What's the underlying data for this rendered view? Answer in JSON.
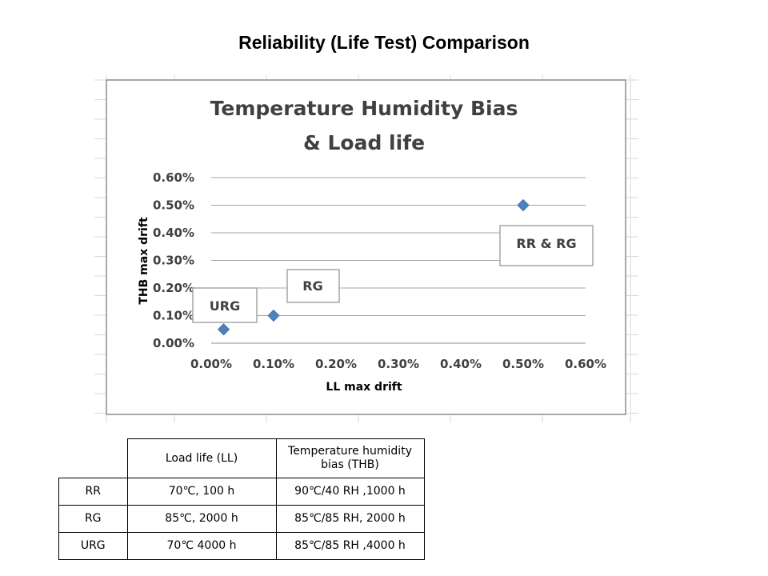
{
  "slide_title": "Reliability (Life Test) Comparison",
  "chart_data": {
    "type": "scatter",
    "title_lines": [
      "Temperature Humidity Bias",
      "& Load life"
    ],
    "xlabel": "LL max drift",
    "ylabel": "THB max drift",
    "xlim": [
      0,
      0.6
    ],
    "ylim": [
      0,
      0.6
    ],
    "x_ticks": [
      "0.00%",
      "0.10%",
      "0.20%",
      "0.30%",
      "0.40%",
      "0.50%",
      "0.60%"
    ],
    "y_ticks": [
      "0.00%",
      "0.10%",
      "0.20%",
      "0.30%",
      "0.40%",
      "0.50%",
      "0.60%"
    ],
    "grid": "horizontal",
    "marker_color": "#4f81bd",
    "points": [
      {
        "x": 0.02,
        "y": 0.05
      },
      {
        "x": 0.1,
        "y": 0.1
      },
      {
        "x": 0.5,
        "y": 0.5
      }
    ],
    "annotations": [
      "URG",
      "RG",
      "RR & RG"
    ]
  },
  "table": {
    "headers": [
      "",
      "Load life (LL)",
      "Temperature humidity bias (THB)"
    ],
    "rows": [
      [
        "RR",
        "70℃, 100 h",
        "90℃/40 RH ,1000 h"
      ],
      [
        "RG",
        "85℃, 2000 h",
        "85℃/85 RH, 2000 h"
      ],
      [
        "URG",
        "70℃ 4000 h",
        "85℃/85 RH ,4000 h"
      ]
    ]
  }
}
